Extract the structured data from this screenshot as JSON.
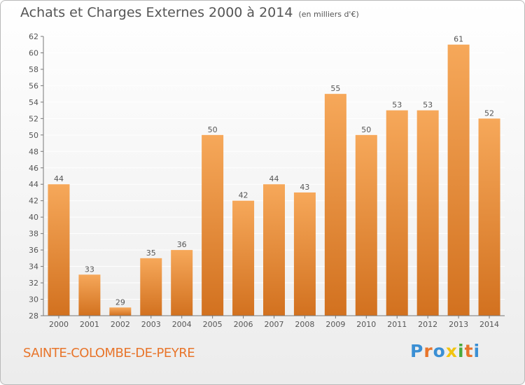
{
  "header": {
    "title": "Achats et Charges Externes 2000 à 2014",
    "unit": "(en milliers d'€)"
  },
  "footer": {
    "place": "SAINTE-COLOMBE-DE-PEYRE",
    "brand": "Proxiti",
    "brand_colors": [
      "#3a8fd4",
      "#e8752b",
      "#3a8fd4",
      "#f2c40f",
      "#4aaa3c",
      "#e8752b",
      "#3a8fd4"
    ]
  },
  "colors": {
    "bar_light": "#f6a85a",
    "bar_dark": "#d2711f",
    "text": "#555555",
    "grid": "#ffffff",
    "place": "#e8752b"
  },
  "chart_data": {
    "type": "bar",
    "title": "Achats et Charges Externes 2000 à 2014",
    "subtitle": "(en milliers d'€)",
    "categories": [
      "2000",
      "2001",
      "2002",
      "2003",
      "2004",
      "2005",
      "2006",
      "2007",
      "2008",
      "2009",
      "2010",
      "2011",
      "2012",
      "2013",
      "2014"
    ],
    "values": [
      44,
      33,
      29,
      35,
      36,
      50,
      42,
      44,
      43,
      55,
      50,
      53,
      53,
      61,
      52
    ],
    "ylim": [
      28,
      62
    ],
    "yticks": [
      28,
      30,
      32,
      34,
      36,
      38,
      40,
      42,
      44,
      46,
      48,
      50,
      52,
      54,
      56,
      58,
      60,
      62
    ],
    "grid": true,
    "data_labels": true
  }
}
